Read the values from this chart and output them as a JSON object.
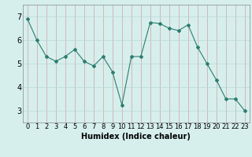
{
  "x": [
    0,
    1,
    2,
    3,
    4,
    5,
    6,
    7,
    8,
    9,
    10,
    11,
    12,
    13,
    14,
    15,
    16,
    17,
    18,
    19,
    20,
    21,
    22,
    23
  ],
  "y": [
    6.9,
    6.0,
    5.3,
    5.1,
    5.3,
    5.6,
    5.1,
    4.9,
    5.3,
    4.65,
    3.25,
    5.3,
    5.3,
    6.75,
    6.7,
    6.5,
    6.4,
    6.65,
    5.7,
    5.0,
    4.3,
    3.5,
    3.5,
    3.0
  ],
  "line_color": "#2e7d6e",
  "marker": "D",
  "marker_size": 2,
  "bg_color": "#d6efed",
  "grid_color_v": "#d4a0a0",
  "grid_color_h": "#b8d8d5",
  "xlabel": "Humidex (Indice chaleur)",
  "ylim": [
    2.5,
    7.5
  ],
  "xlim": [
    -0.5,
    23.5
  ],
  "yticks": [
    3,
    4,
    5,
    6,
    7
  ],
  "xticks": [
    0,
    1,
    2,
    3,
    4,
    5,
    6,
    7,
    8,
    9,
    10,
    11,
    12,
    13,
    14,
    15,
    16,
    17,
    18,
    19,
    20,
    21,
    22,
    23
  ],
  "xlabel_fontsize": 7,
  "tick_fontsize": 6,
  "ytick_fontsize": 7
}
